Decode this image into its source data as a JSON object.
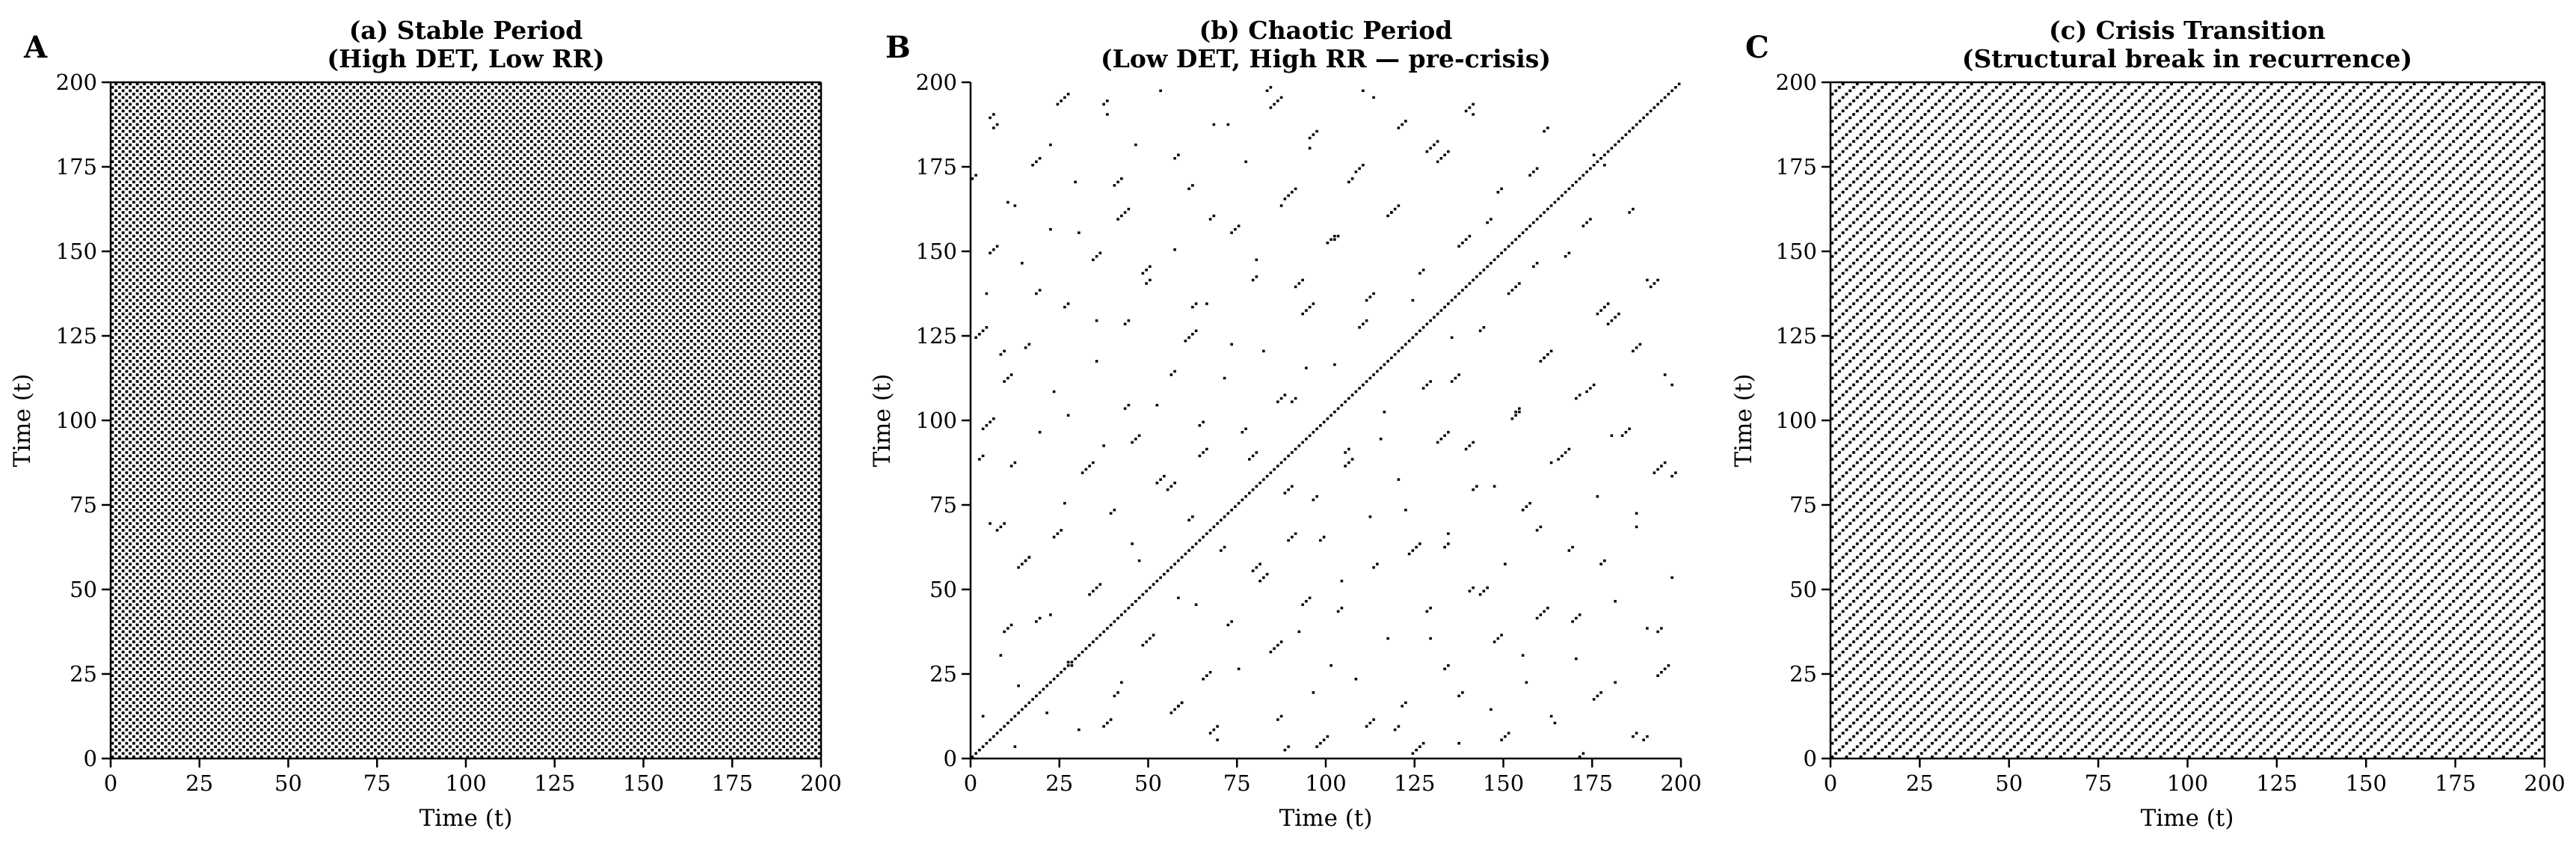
{
  "figure": {
    "panels": [
      {
        "id": "A",
        "letter": "A",
        "title_line1": "(a) Stable Period",
        "title_line2": "(High DET, Low RR)",
        "xlabel": "Time (t)",
        "ylabel": "Time (t)",
        "spines": "box"
      },
      {
        "id": "B",
        "letter": "B",
        "title_line1": "(b) Chaotic Period",
        "title_line2": "(Low DET, High RR — pre-crisis)",
        "xlabel": "Time (t)",
        "ylabel": "Time (t)",
        "spines": "left-bottom"
      },
      {
        "id": "C",
        "letter": "C",
        "title_line1": "(c) Crisis Transition",
        "title_line2": "(Structural break in recurrence)",
        "xlabel": "Time (t)",
        "ylabel": "Time (t)",
        "spines": "box"
      }
    ],
    "xticks": [
      "0",
      "25",
      "50",
      "75",
      "100",
      "125",
      "150",
      "175",
      "200"
    ],
    "yticks": [
      "0",
      "25",
      "50",
      "75",
      "100",
      "125",
      "150",
      "175",
      "200"
    ],
    "colors": {
      "recurrence": "#000000",
      "background": "#ffffff",
      "axis": "#000000"
    }
  },
  "chart_data": [
    {
      "type": "heatmap",
      "title": "(a) Stable Period (High DET, Low RR)",
      "xlabel": "Time (t)",
      "ylabel": "Time (t)",
      "xlim": [
        0,
        200
      ],
      "ylim": [
        0,
        200
      ],
      "n": 200,
      "pattern": "checkerboard",
      "rule": "recurrent if (i + j) mod 2 == 0",
      "period": 2
    },
    {
      "type": "heatmap",
      "title": "(b) Chaotic Period (Low DET, High RR — pre-crisis)",
      "xlabel": "Time (t)",
      "ylabel": "Time (t)",
      "xlim": [
        0,
        200
      ],
      "ylim": [
        0,
        200
      ],
      "n": 200,
      "pattern": "sparse diagonal segments + main diagonal (line of identity)",
      "main_diagonal": true,
      "segments_note": "approximate [i, j, length] short diagonal runs, mirrored about main diagonal",
      "segments": [
        [
          2,
          88,
          2
        ],
        [
          4,
          137,
          1
        ],
        [
          5,
          69,
          1
        ],
        [
          6,
          186,
          2
        ],
        [
          8,
          30,
          1
        ],
        [
          9,
          111,
          3
        ],
        [
          10,
          164,
          1
        ],
        [
          12,
          3,
          1
        ],
        [
          13,
          56,
          4
        ],
        [
          14,
          146,
          1
        ],
        [
          15,
          121,
          2
        ],
        [
          17,
          175,
          3
        ],
        [
          18,
          40,
          2
        ],
        [
          19,
          96,
          1
        ],
        [
          21,
          13,
          1
        ],
        [
          22,
          156,
          1
        ],
        [
          23,
          65,
          3
        ],
        [
          24,
          193,
          4
        ],
        [
          26,
          133,
          2
        ],
        [
          27,
          101,
          1
        ],
        [
          28,
          27,
          1
        ],
        [
          29,
          170,
          1
        ],
        [
          31,
          84,
          4
        ],
        [
          33,
          48,
          2
        ],
        [
          34,
          147,
          3
        ],
        [
          35,
          117,
          1
        ],
        [
          37,
          9,
          3
        ],
        [
          38,
          190,
          1
        ],
        [
          39,
          72,
          2
        ],
        [
          41,
          159,
          4
        ],
        [
          42,
          22,
          1
        ],
        [
          43,
          128,
          2
        ],
        [
          45,
          93,
          3
        ],
        [
          46,
          181,
          1
        ],
        [
          47,
          58,
          1
        ],
        [
          49,
          140,
          2
        ],
        [
          50,
          35,
          2
        ],
        [
          52,
          104,
          1
        ],
        [
          53,
          197,
          1
        ],
        [
          55,
          79,
          3
        ],
        [
          57,
          150,
          1
        ],
        [
          58,
          15,
          2
        ],
        [
          60,
          123,
          4
        ],
        [
          61,
          168,
          2
        ],
        [
          63,
          45,
          1
        ],
        [
          64,
          89,
          3
        ],
        [
          66,
          134,
          1
        ],
        [
          67,
          7,
          3
        ],
        [
          68,
          187,
          1
        ],
        [
          70,
          61,
          2
        ],
        [
          71,
          112,
          1
        ],
        [
          73,
          155,
          3
        ],
        [
          75,
          26,
          1
        ],
        [
          76,
          96,
          2
        ],
        [
          77,
          176,
          1
        ],
        [
          79,
          141,
          2
        ],
        [
          81,
          52,
          3
        ],
        [
          82,
          120,
          1
        ],
        [
          84,
          192,
          4
        ],
        [
          86,
          11,
          2
        ],
        [
          87,
          163,
          1
        ],
        [
          88,
          78,
          3
        ],
        [
          90,
          105,
          2
        ],
        [
          92,
          37,
          1
        ],
        [
          93,
          131,
          4
        ],
        [
          95,
          180,
          1
        ],
        [
          97,
          3,
          4
        ],
        [
          98,
          64,
          2
        ],
        [
          100,
          152,
          3
        ],
        [
          102,
          116,
          1
        ],
        [
          103,
          43,
          2
        ],
        [
          105,
          86,
          3
        ],
        [
          106,
          170,
          2
        ],
        [
          108,
          23,
          1
        ],
        [
          110,
          197,
          1
        ],
        [
          111,
          135,
          3
        ],
        [
          113,
          56,
          2
        ],
        [
          115,
          94,
          1
        ],
        [
          117,
          160,
          2
        ],
        [
          119,
          8,
          2
        ],
        [
          120,
          186,
          3
        ],
        [
          122,
          73,
          1
        ],
        [
          124,
          1,
          4
        ],
        [
          126,
          143,
          2
        ],
        [
          127,
          109,
          3
        ],
        [
          129,
          35,
          1
        ],
        [
          131,
          176,
          4
        ],
        [
          133,
          62,
          2
        ],
        [
          135,
          124,
          1
        ],
        [
          137,
          18,
          2
        ],
        [
          139,
          91,
          3
        ],
        [
          141,
          190,
          1
        ],
        [
          143,
          48,
          3
        ],
        [
          145,
          158,
          2
        ],
        [
          147,
          80,
          1
        ],
        [
          149,
          5,
          3
        ],
        [
          151,
          137,
          4
        ],
        [
          153,
          102,
          2
        ],
        [
          155,
          30,
          1
        ],
        [
          157,
          172,
          3
        ],
        [
          159,
          67,
          2
        ],
        [
          161,
          118,
          3
        ],
        [
          163,
          12,
          1
        ],
        [
          165,
          88,
          4
        ],
        [
          167,
          148,
          2
        ],
        [
          169,
          40,
          3
        ],
        [
          171,
          0,
          2
        ],
        [
          173,
          108,
          3
        ],
        [
          175,
          178,
          1
        ],
        [
          177,
          57,
          2
        ],
        [
          179,
          128,
          4
        ],
        [
          181,
          22,
          1
        ],
        [
          183,
          95,
          3
        ],
        [
          185,
          161,
          2
        ],
        [
          187,
          72,
          1
        ],
        [
          189,
          5,
          2
        ],
        [
          191,
          139,
          3
        ],
        [
          193,
          37,
          2
        ],
        [
          195,
          113,
          1
        ],
        [
          197,
          83,
          2
        ]
      ]
    },
    {
      "type": "heatmap",
      "title": "(c) Crisis Transition (Structural break in recurrence)",
      "xlabel": "Time (t)",
      "ylabel": "Time (t)",
      "xlim": [
        0,
        200
      ],
      "ylim": [
        0,
        200
      ],
      "n": 200,
      "pattern": "periodic diagonal lines",
      "rule": "recurrent if (i - j) mod 4 == 0",
      "period": 4
    }
  ]
}
